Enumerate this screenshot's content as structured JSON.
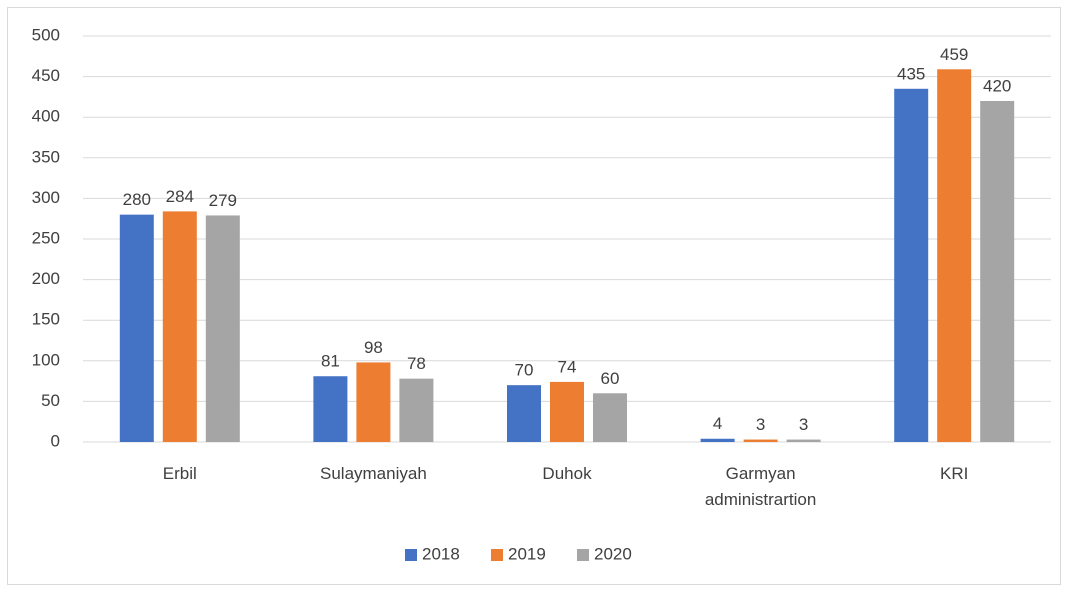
{
  "chart_data": {
    "type": "bar",
    "categories": [
      "Erbil",
      "Sulaymaniyah",
      "Duhok",
      "Garmyan administrartion",
      "KRI"
    ],
    "series": [
      {
        "name": "2018",
        "color": "#4472c4",
        "values": [
          280,
          81,
          70,
          4,
          435
        ]
      },
      {
        "name": "2019",
        "color": "#ed7d31",
        "values": [
          284,
          98,
          74,
          3,
          459
        ]
      },
      {
        "name": "2020",
        "color": "#a5a5a5",
        "values": [
          279,
          78,
          60,
          3,
          420
        ]
      }
    ],
    "ylim": [
      0,
      500
    ],
    "yticks": [
      0,
      50,
      100,
      150,
      200,
      250,
      300,
      350,
      400,
      450,
      500
    ],
    "grid": true,
    "legend": "bottom"
  }
}
